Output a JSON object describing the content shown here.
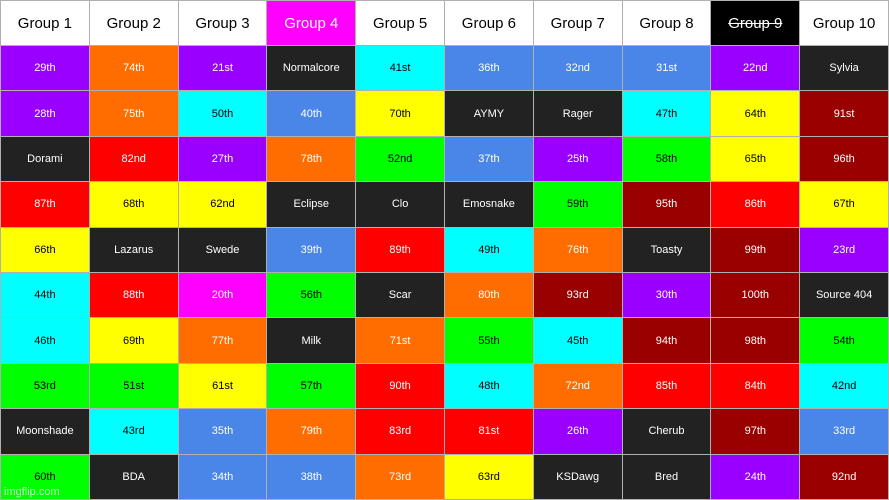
{
  "colors": {
    "purple": "#9900ff",
    "orange": "#ff6d01",
    "magenta": "#ff00ff",
    "dark": "#222222",
    "cyan": "#00ffff",
    "blue": "#4a86e8",
    "yellow": "#ffff00",
    "maroon": "#990000",
    "red": "#ff0000",
    "green": "#00ff00",
    "white": "#ffffff",
    "black": "#000000"
  },
  "headers": [
    {
      "text": "Group 1",
      "bg": "white",
      "fg": "black"
    },
    {
      "text": "Group 2",
      "bg": "white",
      "fg": "black"
    },
    {
      "text": "Group 3",
      "bg": "white",
      "fg": "black"
    },
    {
      "text": "Group 4",
      "bg": "magenta",
      "fg": "white"
    },
    {
      "text": "Group 5",
      "bg": "white",
      "fg": "black"
    },
    {
      "text": "Group 6",
      "bg": "white",
      "fg": "black"
    },
    {
      "text": "Group 7",
      "bg": "white",
      "fg": "black"
    },
    {
      "text": "Group 8",
      "bg": "white",
      "fg": "black"
    },
    {
      "text": "Group 9",
      "bg": "black",
      "fg": "white",
      "strike": true
    },
    {
      "text": "Group 10",
      "bg": "white",
      "fg": "black"
    }
  ],
  "rows": [
    [
      [
        "29th",
        "purple"
      ],
      [
        "74th",
        "orange"
      ],
      [
        "21st",
        "purple"
      ],
      [
        "Normalcore",
        "dark"
      ],
      [
        "41st",
        "cyan"
      ],
      [
        "36th",
        "blue"
      ],
      [
        "32nd",
        "blue"
      ],
      [
        "31st",
        "blue"
      ],
      [
        "22nd",
        "purple"
      ],
      [
        "Sylvia",
        "dark"
      ]
    ],
    [
      [
        "28th",
        "purple"
      ],
      [
        "75th",
        "orange"
      ],
      [
        "50th",
        "cyan"
      ],
      [
        "40th",
        "blue"
      ],
      [
        "70th",
        "yellow"
      ],
      [
        "AYMY",
        "dark"
      ],
      [
        "Rager",
        "dark"
      ],
      [
        "47th",
        "cyan"
      ],
      [
        "64th",
        "yellow"
      ],
      [
        "91st",
        "maroon"
      ]
    ],
    [
      [
        "Dorami",
        "dark"
      ],
      [
        "82nd",
        "red"
      ],
      [
        "27th",
        "purple"
      ],
      [
        "78th",
        "orange"
      ],
      [
        "52nd",
        "green"
      ],
      [
        "37th",
        "blue"
      ],
      [
        "25th",
        "purple"
      ],
      [
        "58th",
        "green"
      ],
      [
        "65th",
        "yellow"
      ],
      [
        "96th",
        "maroon"
      ]
    ],
    [
      [
        "87th",
        "red"
      ],
      [
        "68th",
        "yellow"
      ],
      [
        "62nd",
        "yellow"
      ],
      [
        "Eclipse",
        "dark"
      ],
      [
        "Clo",
        "dark"
      ],
      [
        "Emosnake",
        "dark"
      ],
      [
        "59th",
        "green"
      ],
      [
        "95th",
        "maroon"
      ],
      [
        "86th",
        "red"
      ],
      [
        "67th",
        "yellow"
      ]
    ],
    [
      [
        "66th",
        "yellow"
      ],
      [
        "Lazarus",
        "dark"
      ],
      [
        "Swede",
        "dark"
      ],
      [
        "39th",
        "blue"
      ],
      [
        "89th",
        "red"
      ],
      [
        "49th",
        "cyan"
      ],
      [
        "76th",
        "orange"
      ],
      [
        "Toasty",
        "dark"
      ],
      [
        "99th",
        "maroon"
      ],
      [
        "23rd",
        "purple"
      ]
    ],
    [
      [
        "44th",
        "cyan"
      ],
      [
        "88th",
        "red"
      ],
      [
        "20th",
        "magenta"
      ],
      [
        "56th",
        "green"
      ],
      [
        "Scar",
        "dark"
      ],
      [
        "80th",
        "orange"
      ],
      [
        "93rd",
        "maroon"
      ],
      [
        "30th",
        "purple"
      ],
      [
        "100th",
        "maroon"
      ],
      [
        "Source 404",
        "dark"
      ]
    ],
    [
      [
        "46th",
        "cyan"
      ],
      [
        "69th",
        "yellow"
      ],
      [
        "77th",
        "orange"
      ],
      [
        "Milk",
        "dark"
      ],
      [
        "71st",
        "orange"
      ],
      [
        "55th",
        "green"
      ],
      [
        "45th",
        "cyan"
      ],
      [
        "94th",
        "maroon"
      ],
      [
        "98th",
        "maroon"
      ],
      [
        "54th",
        "green"
      ]
    ],
    [
      [
        "53rd",
        "green"
      ],
      [
        "51st",
        "green"
      ],
      [
        "61st",
        "yellow"
      ],
      [
        "57th",
        "green"
      ],
      [
        "90th",
        "red"
      ],
      [
        "48th",
        "cyan"
      ],
      [
        "72nd",
        "orange"
      ],
      [
        "85th",
        "red"
      ],
      [
        "84th",
        "red"
      ],
      [
        "42nd",
        "cyan"
      ]
    ],
    [
      [
        "Moonshade",
        "dark"
      ],
      [
        "43rd",
        "cyan"
      ],
      [
        "35th",
        "blue"
      ],
      [
        "79th",
        "orange"
      ],
      [
        "83rd",
        "red"
      ],
      [
        "81st",
        "red"
      ],
      [
        "26th",
        "purple"
      ],
      [
        "Cherub",
        "dark"
      ],
      [
        "97th",
        "maroon"
      ],
      [
        "33rd",
        "blue"
      ]
    ],
    [
      [
        "60th",
        "green"
      ],
      [
        "BDA",
        "dark"
      ],
      [
        "34th",
        "blue"
      ],
      [
        "38th",
        "blue"
      ],
      [
        "73rd",
        "orange"
      ],
      [
        "63rd",
        "yellow"
      ],
      [
        "KSDawg",
        "dark"
      ],
      [
        "Bred",
        "dark"
      ],
      [
        "24th",
        "purple"
      ],
      [
        "92nd",
        "maroon"
      ]
    ]
  ],
  "watermark": "imgflip.com"
}
